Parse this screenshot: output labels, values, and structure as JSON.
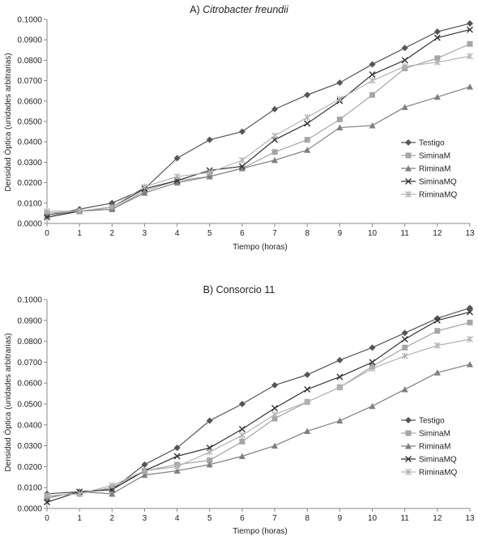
{
  "chart_data": [
    {
      "type": "line",
      "title_prefix": "A) ",
      "title_italic": "Citrobacter freundii",
      "xlabel": "Tiempo (horas)",
      "ylabel": "Densidad Óptica (unidades arbitrarias)",
      "x": [
        0,
        1,
        2,
        3,
        4,
        5,
        6,
        7,
        8,
        9,
        10,
        11,
        12,
        13
      ],
      "x_tick_labels": [
        "0",
        "1",
        "2",
        "3",
        "4",
        "5",
        "6",
        "7",
        "8",
        "9",
        "10",
        "11",
        "12",
        "13"
      ],
      "ylim": [
        0,
        0.1
      ],
      "y_tick_values": [
        0,
        0.01,
        0.02,
        0.03,
        0.04,
        0.05,
        0.06,
        0.07,
        0.08,
        0.09,
        0.1
      ],
      "y_tick_labels": [
        "0.0000",
        "0.0100",
        "0.0200",
        "0.0300",
        "0.0400",
        "0.0500",
        "0.0600",
        "0.0700",
        "0.0800",
        "0.0900",
        "0.1000"
      ],
      "legend_position": "right",
      "grid": false,
      "series": [
        {
          "name": "Testigo",
          "marker": "diamond",
          "color": "#555555",
          "values": [
            0.004,
            0.007,
            0.01,
            0.017,
            0.032,
            0.041,
            0.045,
            0.056,
            0.063,
            0.069,
            0.078,
            0.086,
            0.094,
            0.098
          ]
        },
        {
          "name": "SiminaM",
          "marker": "square",
          "color": "#a6a6a6",
          "values": [
            0.005,
            0.006,
            0.007,
            0.016,
            0.021,
            0.023,
            0.027,
            0.035,
            0.041,
            0.051,
            0.063,
            0.076,
            0.081,
            0.088
          ]
        },
        {
          "name": "RiminaM",
          "marker": "triangle",
          "color": "#7f7f7f",
          "values": [
            0.004,
            0.006,
            0.007,
            0.015,
            0.02,
            0.023,
            0.027,
            0.031,
            0.036,
            0.047,
            0.048,
            0.057,
            0.062,
            0.067
          ]
        },
        {
          "name": "SiminaMQ",
          "marker": "x",
          "color": "#333333",
          "values": [
            0.003,
            0.006,
            0.008,
            0.017,
            0.021,
            0.026,
            0.028,
            0.041,
            0.049,
            0.06,
            0.073,
            0.08,
            0.091,
            0.095
          ]
        },
        {
          "name": "RiminaMQ",
          "marker": "star",
          "color": "#b3b3b3",
          "values": [
            0.006,
            0.006,
            0.008,
            0.018,
            0.023,
            0.025,
            0.031,
            0.043,
            0.052,
            0.061,
            0.07,
            0.077,
            0.079,
            0.082
          ]
        }
      ]
    },
    {
      "type": "line",
      "title_prefix": "B) Consorcio 11",
      "title_italic": "",
      "xlabel": "Tiempo (horas)",
      "ylabel": "Densidad Óptica (unidades arbitrarias)",
      "x": [
        0,
        1,
        2,
        3,
        4,
        5,
        6,
        7,
        8,
        9,
        10,
        11,
        12,
        13
      ],
      "x_tick_labels": [
        "0",
        "1",
        "2",
        "3",
        "4",
        "5",
        "6",
        "7",
        "8",
        "9",
        "10",
        "11",
        "12",
        "13"
      ],
      "ylim": [
        0,
        0.1
      ],
      "y_tick_values": [
        0,
        0.01,
        0.02,
        0.03,
        0.04,
        0.05,
        0.06,
        0.07,
        0.08,
        0.09,
        0.1
      ],
      "y_tick_labels": [
        "0.0000",
        "0.0100",
        "0.0200",
        "0.0300",
        "0.0400",
        "0.0500",
        "0.0600",
        "0.0700",
        "0.0800",
        "0.0900",
        "0.1000"
      ],
      "legend_position": "right",
      "grid": false,
      "series": [
        {
          "name": "Testigo",
          "marker": "diamond",
          "color": "#555555",
          "values": [
            0.007,
            0.008,
            0.009,
            0.021,
            0.029,
            0.042,
            0.05,
            0.059,
            0.064,
            0.071,
            0.077,
            0.084,
            0.091,
            0.096
          ]
        },
        {
          "name": "SiminaM",
          "marker": "square",
          "color": "#a6a6a6",
          "values": [
            0.006,
            0.007,
            0.01,
            0.018,
            0.021,
            0.023,
            0.032,
            0.043,
            0.051,
            0.058,
            0.068,
            0.077,
            0.085,
            0.089
          ]
        },
        {
          "name": "RiminaM",
          "marker": "triangle",
          "color": "#7f7f7f",
          "values": [
            0.005,
            0.008,
            0.007,
            0.016,
            0.018,
            0.021,
            0.025,
            0.03,
            0.037,
            0.042,
            0.049,
            0.057,
            0.065,
            0.069
          ]
        },
        {
          "name": "SiminaMQ",
          "marker": "x",
          "color": "#333333",
          "values": [
            0.003,
            0.008,
            0.009,
            0.018,
            0.025,
            0.029,
            0.038,
            0.048,
            0.057,
            0.063,
            0.07,
            0.081,
            0.09,
            0.094
          ]
        },
        {
          "name": "RiminaMQ",
          "marker": "star",
          "color": "#b3b3b3",
          "values": [
            0.006,
            0.007,
            0.011,
            0.018,
            0.02,
            0.027,
            0.035,
            0.045,
            0.051,
            0.058,
            0.067,
            0.073,
            0.078,
            0.081
          ]
        }
      ]
    }
  ]
}
